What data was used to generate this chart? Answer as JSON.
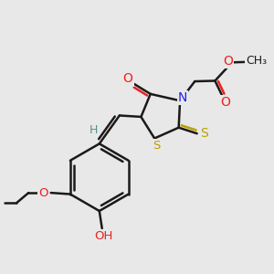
{
  "bg_color": "#e8e8e8",
  "bond_color": "#1a1a1a",
  "N_color": "#2020ee",
  "O_color": "#ee2020",
  "S_color": "#b8a000",
  "H_color": "#5a9090",
  "bond_width": 1.8,
  "figsize": [
    3.0,
    3.0
  ],
  "dpi": 100,
  "xlim": [
    0,
    10
  ],
  "ylim": [
    0,
    10
  ]
}
